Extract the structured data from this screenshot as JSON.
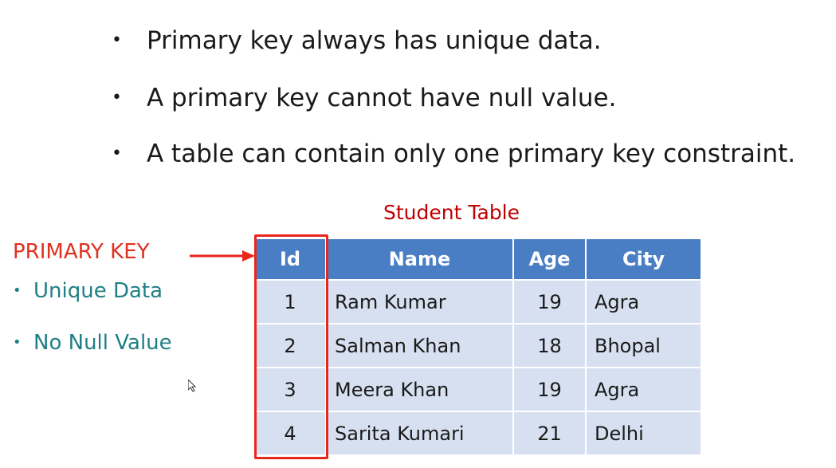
{
  "bullets": [
    "Primary key always has unique data.",
    "A primary key cannot have null value.",
    "A table can contain only one primary key constraint."
  ],
  "bullet_symbol": "•",
  "table_title": "Student Table",
  "primary_key": {
    "label": "PRIMARY KEY",
    "features": [
      "Unique Data",
      "No Null Value"
    ]
  },
  "table": {
    "headers": [
      "Id",
      "Name",
      "Age",
      "City"
    ],
    "rows": [
      [
        "1",
        "Ram Kumar",
        "19",
        "Agra"
      ],
      [
        "2",
        "Salman Khan",
        "18",
        "Bhopal"
      ],
      [
        "3",
        "Meera Khan",
        "19",
        "Agra"
      ],
      [
        "4",
        "Sarita Kumari",
        "21",
        "Delhi"
      ]
    ]
  },
  "colors": {
    "header_bg": "#4a7ec4",
    "cell_bg": "#d6e0f0",
    "highlight": "#e8261a",
    "title": "#c00000",
    "feature_text": "#1f7f86"
  }
}
